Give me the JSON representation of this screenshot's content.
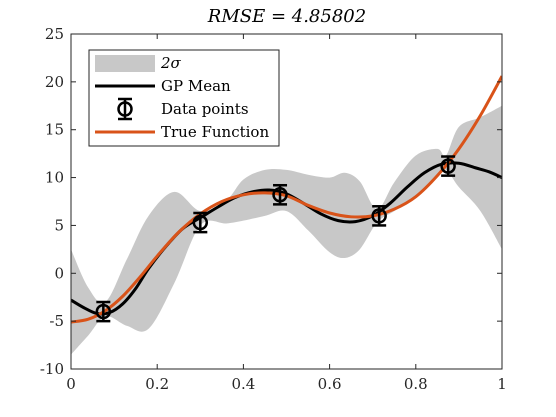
{
  "chart_data": {
    "type": "line",
    "title": "RMSE = 4.85802",
    "xlabel": "",
    "ylabel": "",
    "xlim": [
      0,
      1
    ],
    "ylim": [
      -10,
      25
    ],
    "xticks": [
      0,
      0.2,
      0.4,
      0.6,
      0.8,
      1
    ],
    "xtick_labels": [
      "0",
      "0.2",
      "0.4",
      "0.6",
      "0.8",
      "1"
    ],
    "yticks": [
      -10,
      -5,
      0,
      5,
      10,
      15,
      20,
      25
    ],
    "ytick_labels": [
      "-10",
      "-5",
      "0",
      "5",
      "10",
      "15",
      "20",
      "25"
    ],
    "grid": false,
    "legend_position": "top-left",
    "series": [
      {
        "name": "2σ",
        "kind": "band",
        "color": "#c8c8c8",
        "x": [
          0,
          0.04,
          0.08,
          0.13,
          0.18,
          0.24,
          0.3,
          0.36,
          0.4,
          0.45,
          0.5,
          0.55,
          0.6,
          0.635,
          0.67,
          0.71,
          0.75,
          0.8,
          0.85,
          0.87,
          0.9,
          0.95,
          1.0
        ],
        "lower": [
          -8.5,
          -6.5,
          -4.5,
          -5.5,
          -5.8,
          -1.0,
          5.0,
          5.2,
          5.5,
          6.0,
          6.5,
          4.5,
          2.2,
          1.6,
          2.5,
          5.3,
          6.5,
          8.0,
          10.0,
          10.8,
          9.0,
          6.5,
          2.5
        ],
        "upper": [
          2.5,
          -1.5,
          -3.0,
          1.5,
          6.0,
          8.5,
          6.5,
          7.6,
          9.8,
          10.8,
          10.8,
          10.3,
          10.0,
          10.5,
          9.6,
          6.7,
          9.5,
          12.3,
          13.0,
          12.3,
          15.3,
          16.3,
          17.5
        ]
      },
      {
        "name": "GP Mean",
        "kind": "line",
        "color": "#000000",
        "x": [
          0,
          0.03,
          0.06,
          0.09,
          0.12,
          0.15,
          0.18,
          0.22,
          0.26,
          0.3,
          0.34,
          0.38,
          0.42,
          0.46,
          0.5,
          0.54,
          0.58,
          0.62,
          0.66,
          0.7,
          0.74,
          0.78,
          0.82,
          0.86,
          0.9,
          0.94,
          0.97,
          1.0
        ],
        "y": [
          -2.8,
          -3.6,
          -4.2,
          -4.1,
          -3.2,
          -1.6,
          0.5,
          2.8,
          4.7,
          5.8,
          6.9,
          7.9,
          8.5,
          8.7,
          8.3,
          7.3,
          6.2,
          5.5,
          5.4,
          6.0,
          7.3,
          9.0,
          10.5,
          11.4,
          11.5,
          11.0,
          10.6,
          10.0
        ]
      },
      {
        "name": "True Function",
        "kind": "line",
        "color": "#d95319",
        "x": [
          0,
          0.04,
          0.08,
          0.12,
          0.16,
          0.2,
          0.25,
          0.3,
          0.35,
          0.4,
          0.45,
          0.5,
          0.55,
          0.6,
          0.65,
          0.7,
          0.75,
          0.8,
          0.85,
          0.9,
          0.95,
          1.0
        ],
        "y": [
          -5.1,
          -4.8,
          -3.9,
          -2.4,
          -0.4,
          1.8,
          4.3,
          6.2,
          7.5,
          8.2,
          8.4,
          8.1,
          7.1,
          6.3,
          5.9,
          6.0,
          6.7,
          8.0,
          10.2,
          13.0,
          16.5,
          20.6
        ]
      },
      {
        "name": "Data points",
        "kind": "errorbar",
        "color": "#000000",
        "x": [
          0.075,
          0.3,
          0.485,
          0.715,
          0.875
        ],
        "y": [
          -4.0,
          5.3,
          8.2,
          6.0,
          11.2
        ],
        "err": 1.0
      }
    ],
    "legend": [
      "2σ",
      "GP Mean",
      "Data points",
      "True Function"
    ]
  }
}
